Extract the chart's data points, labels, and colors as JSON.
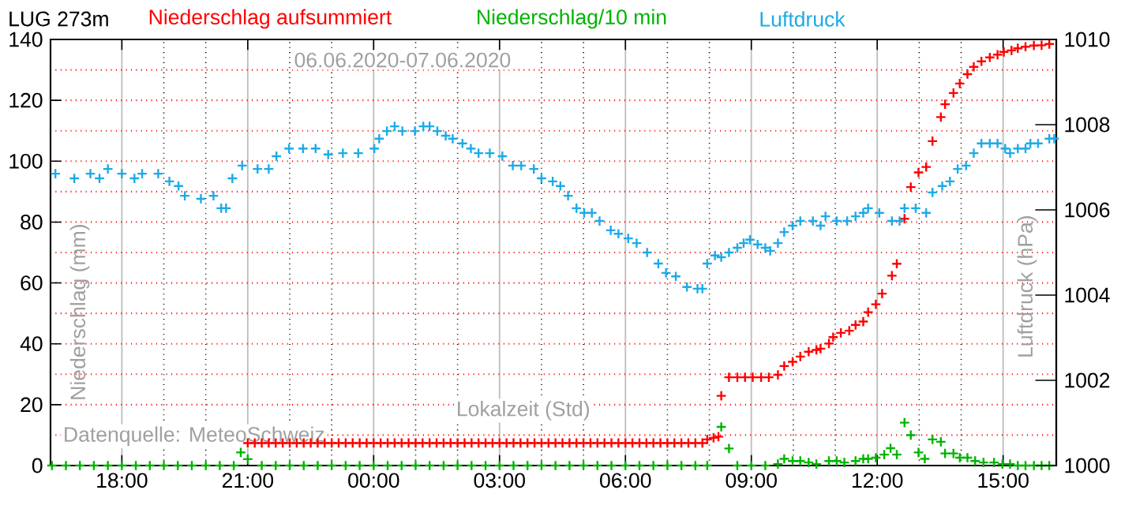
{
  "chart_data": {
    "type": "scatter",
    "title": "LUG   273m",
    "xlabel": "Lokalzeit (Std)",
    "ylabel": "Niederschlag (mm)",
    "y2label": "Luftdruck (hPa)",
    "annotations": [
      "06.06.2020-07.06.2020",
      "Datenquelle: MeteoSchweiz"
    ],
    "marker": "cross",
    "grid": true,
    "legend": "top",
    "xlim": [
      "2020-06-06T16:18",
      "2020-06-07T16:16"
    ],
    "xticks": [
      {
        "value": "2020-06-06T18:00",
        "label": "18:00"
      },
      {
        "value": "2020-06-06T21:00",
        "label": "21:00"
      },
      {
        "value": "2020-06-07T00:00",
        "label": "00:00"
      },
      {
        "value": "2020-06-07T03:00",
        "label": "03:00"
      },
      {
        "value": "2020-06-07T06:00",
        "label": "06:00"
      },
      {
        "value": "2020-06-07T09:00",
        "label": "09:00"
      },
      {
        "value": "2020-06-07T12:00",
        "label": "12:00"
      },
      {
        "value": "2020-06-07T15:00",
        "label": "15:00"
      }
    ],
    "ylim": [
      0,
      140
    ],
    "yticks": [
      0,
      20,
      40,
      60,
      80,
      100,
      120,
      140
    ],
    "y2lim": [
      1000,
      1010
    ],
    "y2ticks": [
      1000,
      1002,
      1004,
      1006,
      1008,
      1010
    ],
    "series": [
      {
        "name": "Niederschlag aufsummiert",
        "color": "#ff0000",
        "x": [
          "2020-06-06T21:00",
          "2020-06-06T21:10",
          "2020-06-06T21:20",
          "2020-06-06T21:30",
          "2020-06-06T21:40",
          "2020-06-06T21:50",
          "2020-06-06T22:00",
          "2020-06-06T22:10",
          "2020-06-06T22:20",
          "2020-06-06T22:30",
          "2020-06-06T22:40",
          "2020-06-06T22:50",
          "2020-06-06T23:00",
          "2020-06-06T23:10",
          "2020-06-06T23:20",
          "2020-06-06T23:30",
          "2020-06-06T23:40",
          "2020-06-06T23:50",
          "2020-06-07T00:00",
          "2020-06-07T00:10",
          "2020-06-07T00:20",
          "2020-06-07T00:30",
          "2020-06-07T00:40",
          "2020-06-07T00:50",
          "2020-06-07T01:00",
          "2020-06-07T01:10",
          "2020-06-07T01:20",
          "2020-06-07T01:30",
          "2020-06-07T01:40",
          "2020-06-07T01:50",
          "2020-06-07T02:00",
          "2020-06-07T02:10",
          "2020-06-07T02:20",
          "2020-06-07T02:30",
          "2020-06-07T02:40",
          "2020-06-07T02:50",
          "2020-06-07T03:00",
          "2020-06-07T03:10",
          "2020-06-07T03:20",
          "2020-06-07T03:30",
          "2020-06-07T03:40",
          "2020-06-07T03:50",
          "2020-06-07T04:00",
          "2020-06-07T04:10",
          "2020-06-07T04:20",
          "2020-06-07T04:30",
          "2020-06-07T04:40",
          "2020-06-07T04:50",
          "2020-06-07T05:00",
          "2020-06-07T05:10",
          "2020-06-07T05:20",
          "2020-06-07T05:30",
          "2020-06-07T05:40",
          "2020-06-07T05:50",
          "2020-06-07T06:00",
          "2020-06-07T06:10",
          "2020-06-07T06:20",
          "2020-06-07T06:30",
          "2020-06-07T06:40",
          "2020-06-07T06:50",
          "2020-06-07T07:00",
          "2020-06-07T07:10",
          "2020-06-07T07:20",
          "2020-06-07T07:30",
          "2020-06-07T07:40",
          "2020-06-07T07:50",
          "2020-06-07T07:57",
          "2020-06-07T08:06",
          "2020-06-07T08:13",
          "2020-06-07T08:17",
          "2020-06-07T08:28",
          "2020-06-07T08:40",
          "2020-06-07T08:51",
          "2020-06-07T09:02",
          "2020-06-07T09:14",
          "2020-06-07T09:25",
          "2020-06-07T09:38",
          "2020-06-07T09:47",
          "2020-06-07T09:59",
          "2020-06-07T10:10",
          "2020-06-07T10:22",
          "2020-06-07T10:33",
          "2020-06-07T10:39",
          "2020-06-07T10:51",
          "2020-06-07T10:57",
          "2020-06-07T11:08",
          "2020-06-07T11:20",
          "2020-06-07T11:29",
          "2020-06-07T11:40",
          "2020-06-07T11:47",
          "2020-06-07T11:58",
          "2020-06-07T12:07",
          "2020-06-07T12:21",
          "2020-06-07T12:28",
          "2020-06-07T12:39",
          "2020-06-07T12:48",
          "2020-06-07T12:59",
          "2020-06-07T13:10",
          "2020-06-07T13:19",
          "2020-06-07T13:31",
          "2020-06-07T13:37",
          "2020-06-07T13:49",
          "2020-06-07T13:58",
          "2020-06-07T14:09",
          "2020-06-07T14:18",
          "2020-06-07T14:29",
          "2020-06-07T14:41",
          "2020-06-07T14:52",
          "2020-06-07T15:01",
          "2020-06-07T15:12",
          "2020-06-07T15:21",
          "2020-06-07T15:32",
          "2020-06-07T15:44",
          "2020-06-07T15:55",
          "2020-06-07T16:06"
        ],
        "values": [
          7.4,
          7.4,
          7.4,
          7.4,
          7.4,
          7.4,
          7.4,
          7.4,
          7.4,
          7.4,
          7.4,
          7.4,
          7.4,
          7.4,
          7.4,
          7.4,
          7.4,
          7.4,
          7.4,
          7.4,
          7.4,
          7.4,
          7.4,
          7.4,
          7.4,
          7.4,
          7.4,
          7.4,
          7.4,
          7.4,
          7.4,
          7.4,
          7.4,
          7.4,
          7.4,
          7.4,
          7.4,
          7.4,
          7.4,
          7.4,
          7.4,
          7.4,
          7.4,
          7.4,
          7.4,
          7.4,
          7.4,
          7.4,
          7.4,
          7.4,
          7.4,
          7.4,
          7.4,
          7.4,
          7.4,
          7.4,
          7.4,
          7.4,
          7.4,
          7.4,
          7.4,
          7.4,
          7.4,
          7.4,
          7.4,
          7.4,
          8.6,
          9.1,
          9.5,
          22.9,
          29.0,
          29.0,
          29.0,
          29.0,
          29.0,
          29.0,
          29.8,
          32.7,
          34.1,
          35.8,
          37.4,
          38.0,
          38.4,
          40.1,
          42.2,
          43.6,
          44.3,
          46.2,
          47.3,
          50.4,
          53.0,
          56.5,
          62.4,
          66.3,
          81.1,
          91.5,
          96.3,
          98.1,
          106.6,
          114.5,
          118.7,
          122.4,
          125.5,
          128.6,
          131.0,
          132.8,
          134.1,
          135.0,
          135.9,
          136.4,
          137.1,
          137.6,
          138.0,
          138.1,
          138.5
        ]
      },
      {
        "name": "Niederschlag/10 min",
        "color": "#00b400",
        "x": [
          "2020-06-06T16:20",
          "2020-06-06T16:40",
          "2020-06-06T17:00",
          "2020-06-06T17:20",
          "2020-06-06T17:40",
          "2020-06-06T18:00",
          "2020-06-06T18:20",
          "2020-06-06T18:40",
          "2020-06-06T19:00",
          "2020-06-06T19:20",
          "2020-06-06T19:40",
          "2020-06-06T20:00",
          "2020-06-06T20:20",
          "2020-06-06T20:40",
          "2020-06-06T20:50",
          "2020-06-06T21:00",
          "2020-06-06T21:20",
          "2020-06-06T21:40",
          "2020-06-06T22:00",
          "2020-06-06T22:20",
          "2020-06-06T22:40",
          "2020-06-06T23:00",
          "2020-06-06T23:20",
          "2020-06-06T23:40",
          "2020-06-07T00:00",
          "2020-06-07T00:20",
          "2020-06-07T00:40",
          "2020-06-07T01:00",
          "2020-06-07T01:20",
          "2020-06-07T01:40",
          "2020-06-07T02:00",
          "2020-06-07T02:20",
          "2020-06-07T02:40",
          "2020-06-07T03:00",
          "2020-06-07T03:20",
          "2020-06-07T03:40",
          "2020-06-07T04:00",
          "2020-06-07T04:20",
          "2020-06-07T04:40",
          "2020-06-07T05:00",
          "2020-06-07T05:20",
          "2020-06-07T05:40",
          "2020-06-07T06:00",
          "2020-06-07T06:20",
          "2020-06-07T06:40",
          "2020-06-07T07:00",
          "2020-06-07T07:20",
          "2020-06-07T07:40",
          "2020-06-07T07:57",
          "2020-06-07T08:17",
          "2020-06-07T08:28",
          "2020-06-07T08:40",
          "2020-06-07T09:00",
          "2020-06-07T09:20",
          "2020-06-07T09:38",
          "2020-06-07T09:47",
          "2020-06-07T09:59",
          "2020-06-07T10:10",
          "2020-06-07T10:22",
          "2020-06-07T10:33",
          "2020-06-07T10:51",
          "2020-06-07T11:02",
          "2020-06-07T11:13",
          "2020-06-07T11:29",
          "2020-06-07T11:40",
          "2020-06-07T11:47",
          "2020-06-07T11:58",
          "2020-06-07T12:10",
          "2020-06-07T12:19",
          "2020-06-07T12:28",
          "2020-06-07T12:39",
          "2020-06-07T12:48",
          "2020-06-07T12:59",
          "2020-06-07T13:08",
          "2020-06-07T13:19",
          "2020-06-07T13:31",
          "2020-06-07T13:37",
          "2020-06-07T13:49",
          "2020-06-07T13:58",
          "2020-06-07T14:09",
          "2020-06-07T14:20",
          "2020-06-07T14:32",
          "2020-06-07T14:47",
          "2020-06-07T14:59",
          "2020-06-07T15:10",
          "2020-06-07T15:21",
          "2020-06-07T15:32",
          "2020-06-07T15:44",
          "2020-06-07T15:55",
          "2020-06-07T16:06"
        ],
        "values": [
          0,
          0,
          0,
          0,
          0,
          0,
          0,
          0,
          0,
          0,
          0,
          0,
          0,
          0,
          4.3,
          2.1,
          0,
          0,
          0,
          0,
          0,
          0,
          0,
          0,
          0,
          0,
          0,
          0,
          0,
          0,
          0,
          0,
          0,
          0,
          0,
          0,
          0,
          0,
          0,
          0,
          0,
          0,
          0,
          0,
          0,
          0,
          0,
          0,
          0,
          12.7,
          5.6,
          0,
          0,
          0,
          0.5,
          2.2,
          1.5,
          1.5,
          1,
          0.5,
          1.5,
          1.5,
          1,
          1.5,
          2.2,
          2.2,
          2.6,
          3.6,
          5.7,
          3.6,
          14.1,
          10.0,
          4.3,
          2.2,
          8.6,
          7.8,
          4.0,
          4.0,
          2.6,
          2.6,
          1.5,
          1,
          1,
          0.5,
          0.5,
          0,
          0,
          0,
          0,
          0
        ]
      },
      {
        "name": "Luftdruck",
        "color": "#1eaae6",
        "axis": "y2",
        "x": [
          "2020-06-06T16:25",
          "2020-06-06T16:52",
          "2020-06-06T17:15",
          "2020-06-06T17:28",
          "2020-06-06T17:40",
          "2020-06-06T18:00",
          "2020-06-06T18:18",
          "2020-06-06T18:29",
          "2020-06-06T18:52",
          "2020-06-06T19:08",
          "2020-06-06T19:21",
          "2020-06-06T19:30",
          "2020-06-06T19:53",
          "2020-06-06T20:11",
          "2020-06-06T20:22",
          "2020-06-06T20:29",
          "2020-06-06T20:38",
          "2020-06-06T20:52",
          "2020-06-06T21:14",
          "2020-06-06T21:30",
          "2020-06-06T21:41",
          "2020-06-06T21:59",
          "2020-06-06T22:19",
          "2020-06-06T22:37",
          "2020-06-06T22:55",
          "2020-06-06T23:16",
          "2020-06-06T23:38",
          "2020-06-07T00:01",
          "2020-06-07T00:08",
          "2020-06-07T00:19",
          "2020-06-07T00:30",
          "2020-06-07T00:41",
          "2020-06-07T00:59",
          "2020-06-07T01:11",
          "2020-06-07T01:20",
          "2020-06-07T01:31",
          "2020-06-07T01:43",
          "2020-06-07T01:53",
          "2020-06-07T02:07",
          "2020-06-07T02:19",
          "2020-06-07T02:30",
          "2020-06-07T02:46",
          "2020-06-07T03:04",
          "2020-06-07T03:19",
          "2020-06-07T03:31",
          "2020-06-07T03:49",
          "2020-06-07T04:00",
          "2020-06-07T04:16",
          "2020-06-07T04:27",
          "2020-06-07T04:38",
          "2020-06-07T04:50",
          "2020-06-07T05:01",
          "2020-06-07T05:12",
          "2020-06-07T05:23",
          "2020-06-07T05:39",
          "2020-06-07T05:50",
          "2020-06-07T06:04",
          "2020-06-07T06:16",
          "2020-06-07T06:31",
          "2020-06-07T06:47",
          "2020-06-07T06:58",
          "2020-06-07T07:12",
          "2020-06-07T07:28",
          "2020-06-07T07:43",
          "2020-06-07T07:50",
          "2020-06-07T07:57",
          "2020-06-07T08:08",
          "2020-06-07T08:17",
          "2020-06-07T08:28",
          "2020-06-07T08:40",
          "2020-06-07T08:49",
          "2020-06-07T08:58",
          "2020-06-07T09:09",
          "2020-06-07T09:20",
          "2020-06-07T09:27",
          "2020-06-07T09:38",
          "2020-06-07T09:47",
          "2020-06-07T09:59",
          "2020-06-07T10:10",
          "2020-06-07T10:28",
          "2020-06-07T10:39",
          "2020-06-07T10:46",
          "2020-06-07T11:02",
          "2020-06-07T11:17",
          "2020-06-07T11:29",
          "2020-06-07T11:40",
          "2020-06-07T11:47",
          "2020-06-07T12:03",
          "2020-06-07T12:21",
          "2020-06-07T12:32",
          "2020-06-07T12:39",
          "2020-06-07T12:55",
          "2020-06-07T13:10",
          "2020-06-07T13:19",
          "2020-06-07T13:33",
          "2020-06-07T13:44",
          "2020-06-07T13:55",
          "2020-06-07T14:07",
          "2020-06-07T14:18",
          "2020-06-07T14:29",
          "2020-06-07T14:41",
          "2020-06-07T14:52",
          "2020-06-07T15:03",
          "2020-06-07T15:10",
          "2020-06-07T15:21",
          "2020-06-07T15:32",
          "2020-06-07T15:39",
          "2020-06-07T15:50",
          "2020-06-07T16:06",
          "2020-06-07T16:13"
        ],
        "values": [
          1006.85,
          1006.74,
          1006.85,
          1006.74,
          1006.96,
          1006.85,
          1006.74,
          1006.85,
          1006.85,
          1006.67,
          1006.56,
          1006.33,
          1006.26,
          1006.33,
          1006.04,
          1006.04,
          1006.74,
          1007.04,
          1006.96,
          1006.96,
          1007.26,
          1007.44,
          1007.44,
          1007.44,
          1007.3,
          1007.33,
          1007.33,
          1007.44,
          1007.67,
          1007.85,
          1007.96,
          1007.85,
          1007.85,
          1007.96,
          1007.96,
          1007.85,
          1007.74,
          1007.67,
          1007.56,
          1007.44,
          1007.33,
          1007.33,
          1007.26,
          1007.04,
          1007.04,
          1006.96,
          1006.74,
          1006.67,
          1006.56,
          1006.33,
          1006.04,
          1005.93,
          1005.93,
          1005.74,
          1005.52,
          1005.44,
          1005.33,
          1005.22,
          1005.0,
          1004.74,
          1004.52,
          1004.44,
          1004.19,
          1004.15,
          1004.15,
          1004.74,
          1004.93,
          1004.89,
          1005.0,
          1005.11,
          1005.22,
          1005.3,
          1005.19,
          1005.11,
          1005.04,
          1005.22,
          1005.48,
          1005.63,
          1005.74,
          1005.74,
          1005.63,
          1005.85,
          1005.74,
          1005.74,
          1005.85,
          1005.93,
          1006.04,
          1005.93,
          1005.74,
          1005.74,
          1006.04,
          1006.04,
          1005.93,
          1006.41,
          1006.56,
          1006.67,
          1006.96,
          1007.04,
          1007.33,
          1007.56,
          1007.56,
          1007.56,
          1007.44,
          1007.33,
          1007.44,
          1007.44,
          1007.56,
          1007.56,
          1007.67,
          1007.67
        ]
      }
    ]
  }
}
